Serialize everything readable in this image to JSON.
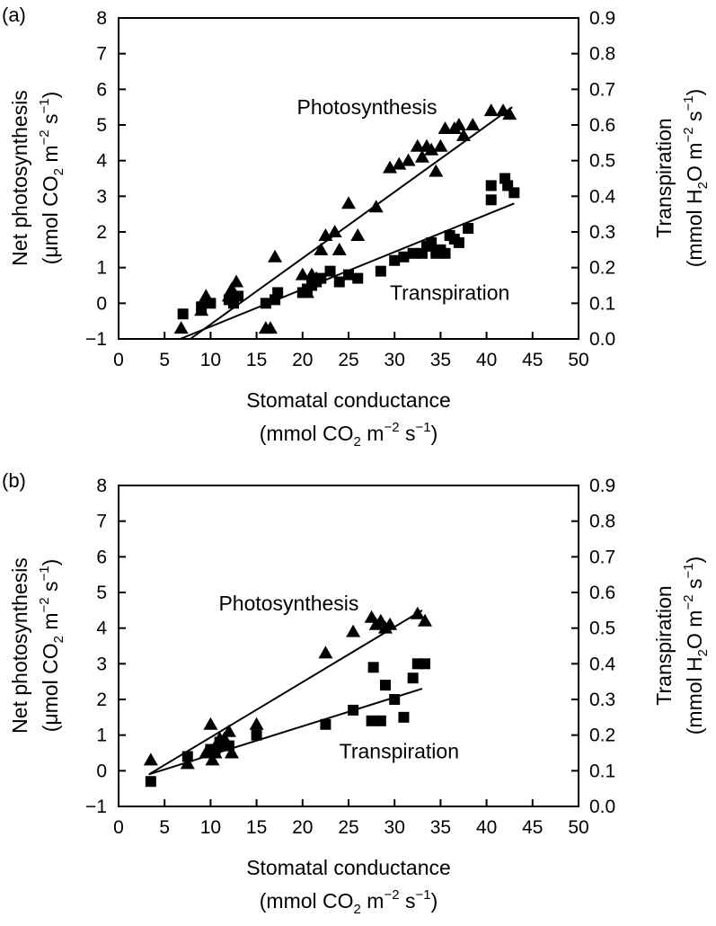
{
  "chart_data": [
    {
      "panel_label": "(a)",
      "type": "scatter",
      "x_title": {
        "line1": "Stomatal conductance",
        "line2_pre": "(mmol CO",
        "line2_sub": "2",
        "line2_mid": " m",
        "line2_sup1": "−2",
        "line2_mid2": " s",
        "line2_sup2": "−1",
        "line2_post": ")"
      },
      "y_left_title": {
        "line1": "Net photosynthesis",
        "line2_pre": "(μmol CO",
        "line2_sub": "2",
        "line2_mid": " m",
        "line2_sup1": "−2",
        "line2_mid2": " s",
        "line2_sup2": "−1",
        "line2_post": ")"
      },
      "y_right_title": {
        "line1": "Transpiration",
        "line2_pre": "(mmol H",
        "line2_sub": "2",
        "line2_mid": "O m",
        "line2_sup1": "−2",
        "line2_mid2": " s",
        "line2_sup2": "−1",
        "line2_post": ")"
      },
      "xlim": [
        0,
        50
      ],
      "ylim_left": [
        -1,
        8
      ],
      "ylim_right": [
        0.0,
        0.9
      ],
      "x_ticks": [
        "0",
        "5",
        "10",
        "15",
        "20",
        "25",
        "30",
        "35",
        "40",
        "45",
        "50"
      ],
      "y_left_ticks": [
        "−1",
        "0",
        "1",
        "2",
        "3",
        "4",
        "5",
        "6",
        "7",
        "8"
      ],
      "y_right_ticks": [
        "0.0",
        "0.1",
        "0.2",
        "0.3",
        "0.4",
        "0.5",
        "0.6",
        "0.7",
        "0.8",
        "0.9"
      ],
      "annotations": [
        {
          "text": "Photosynthesis",
          "x": 27,
          "y": 5.3
        },
        {
          "text": "Transpiration",
          "x": 36,
          "y": 0.1
        }
      ],
      "series": [
        {
          "name": "Photosynthesis",
          "marker": "triangle",
          "axis": "left",
          "points": [
            [
              6.8,
              -0.7
            ],
            [
              9,
              -0.2
            ],
            [
              9.5,
              0.2
            ],
            [
              12,
              0.2
            ],
            [
              12.3,
              0.4
            ],
            [
              12.8,
              0.6
            ],
            [
              16,
              -0.7
            ],
            [
              16.5,
              -0.7
            ],
            [
              17,
              1.3
            ],
            [
              20,
              0.8
            ],
            [
              20.5,
              0.3
            ],
            [
              21,
              0.8
            ],
            [
              21.5,
              0.7
            ],
            [
              22,
              1.5
            ],
            [
              22.5,
              1.9
            ],
            [
              23.5,
              2.0
            ],
            [
              24,
              1.5
            ],
            [
              25,
              2.8
            ],
            [
              26,
              1.9
            ],
            [
              28,
              2.7
            ],
            [
              29.5,
              3.8
            ],
            [
              30.5,
              3.9
            ],
            [
              31.5,
              4.0
            ],
            [
              32.5,
              4.4
            ],
            [
              33,
              4.1
            ],
            [
              33.5,
              4.4
            ],
            [
              34,
              4.3
            ],
            [
              34.5,
              3.7
            ],
            [
              35,
              4.4
            ],
            [
              35.5,
              4.9
            ],
            [
              36.5,
              4.9
            ],
            [
              37,
              5.0
            ],
            [
              37.5,
              4.7
            ],
            [
              38.5,
              5.0
            ],
            [
              40.5,
              5.4
            ],
            [
              41.8,
              5.4
            ],
            [
              42.5,
              5.3
            ]
          ]
        },
        {
          "name": "Transpiration",
          "marker": "square",
          "axis": "right",
          "points": [
            [
              7,
              0.07
            ],
            [
              9,
              0.09
            ],
            [
              10,
              0.1
            ],
            [
              12,
              0.11
            ],
            [
              12.5,
              0.1
            ],
            [
              13,
              0.12
            ],
            [
              16,
              0.1
            ],
            [
              17,
              0.11
            ],
            [
              17.3,
              0.13
            ],
            [
              20,
              0.13
            ],
            [
              20.5,
              0.14
            ],
            [
              21,
              0.15
            ],
            [
              21.5,
              0.16
            ],
            [
              22,
              0.17
            ],
            [
              23,
              0.19
            ],
            [
              24,
              0.16
            ],
            [
              25,
              0.18
            ],
            [
              26,
              0.17
            ],
            [
              28.5,
              0.19
            ],
            [
              30,
              0.22
            ],
            [
              31,
              0.23
            ],
            [
              32,
              0.24
            ],
            [
              33,
              0.24
            ],
            [
              33.5,
              0.26
            ],
            [
              34,
              0.27
            ],
            [
              34.5,
              0.24
            ],
            [
              35,
              0.25
            ],
            [
              35.5,
              0.24
            ],
            [
              36,
              0.29
            ],
            [
              36.5,
              0.28
            ],
            [
              37,
              0.27
            ],
            [
              38,
              0.31
            ],
            [
              40.5,
              0.39
            ],
            [
              42,
              0.45
            ],
            [
              42.3,
              0.43
            ],
            [
              40.5,
              0.43
            ],
            [
              43,
              0.41
            ]
          ]
        }
      ],
      "fit_lines": [
        {
          "name": "Photosynthesis",
          "axis": "left",
          "x": [
            7.8,
            42.8
          ],
          "y": [
            -1.0,
            5.5
          ]
        },
        {
          "name": "Transpiration",
          "axis": "right",
          "x": [
            6.7,
            43
          ],
          "y": [
            0.0,
            0.38
          ]
        }
      ]
    },
    {
      "panel_label": "(b)",
      "type": "scatter",
      "x_title": {
        "line1": "Stomatal conductance",
        "line2_pre": "(mmol CO",
        "line2_sub": "2",
        "line2_mid": " m",
        "line2_sup1": "−2",
        "line2_mid2": " s",
        "line2_sup2": "−1",
        "line2_post": ")"
      },
      "y_left_title": {
        "line1": "Net photosynthesis",
        "line2_pre": "(μmol CO",
        "line2_sub": "2",
        "line2_mid": " m",
        "line2_sup1": "−2",
        "line2_mid2": " s",
        "line2_sup2": "−1",
        "line2_post": ")"
      },
      "y_right_title": {
        "line1": "Transpiration",
        "line2_pre": "(mmol H",
        "line2_sub": "2",
        "line2_mid": "O m",
        "line2_sup1": "−2",
        "line2_mid2": " s",
        "line2_sup2": "−1",
        "line2_post": ")"
      },
      "xlim": [
        0,
        50
      ],
      "ylim_left": [
        -1,
        8
      ],
      "ylim_right": [
        0.0,
        0.9
      ],
      "x_ticks": [
        "0",
        "5",
        "10",
        "15",
        "20",
        "25",
        "30",
        "35",
        "40",
        "45",
        "50"
      ],
      "y_left_ticks": [
        "−1",
        "0",
        "1",
        "2",
        "3",
        "4",
        "5",
        "6",
        "7",
        "8"
      ],
      "y_right_ticks": [
        "0.0",
        "0.1",
        "0.2",
        "0.3",
        "0.4",
        "0.5",
        "0.6",
        "0.7",
        "0.8",
        "0.9"
      ],
      "annotations": [
        {
          "text": "Photosynthesis",
          "x": 18.5,
          "y": 4.5
        },
        {
          "text": "Transpiration",
          "x": 30.5,
          "y": 0.35
        }
      ],
      "series": [
        {
          "name": "Photosynthesis",
          "marker": "triangle",
          "axis": "left",
          "points": [
            [
              3.5,
              0.3
            ],
            [
              7.5,
              0.2
            ],
            [
              9.5,
              0.5
            ],
            [
              10,
              1.3
            ],
            [
              10.2,
              0.3
            ],
            [
              10.5,
              0.5
            ],
            [
              11,
              0.9
            ],
            [
              11.5,
              0.9
            ],
            [
              12,
              1.1
            ],
            [
              12.3,
              0.5
            ],
            [
              15,
              1.3
            ],
            [
              22.5,
              3.3
            ],
            [
              25.5,
              3.9
            ],
            [
              27.5,
              4.3
            ],
            [
              28,
              4.1
            ],
            [
              28.5,
              4.2
            ],
            [
              29,
              4.0
            ],
            [
              29.5,
              4.1
            ],
            [
              32.5,
              4.4
            ],
            [
              33.3,
              4.2
            ]
          ]
        },
        {
          "name": "Transpiration",
          "marker": "square",
          "axis": "right",
          "points": [
            [
              3.5,
              0.07
            ],
            [
              7.5,
              0.14
            ],
            [
              10,
              0.16
            ],
            [
              10.5,
              0.16
            ],
            [
              11,
              0.18
            ],
            [
              11.5,
              0.17
            ],
            [
              12,
              0.17
            ],
            [
              15,
              0.2
            ],
            [
              22.5,
              0.23
            ],
            [
              25.5,
              0.27
            ],
            [
              27.5,
              0.24
            ],
            [
              27.7,
              0.39
            ],
            [
              28.5,
              0.24
            ],
            [
              29,
              0.34
            ],
            [
              30,
              0.3
            ],
            [
              31,
              0.25
            ],
            [
              32,
              0.36
            ],
            [
              32.5,
              0.4
            ],
            [
              33.3,
              0.4
            ]
          ]
        }
      ],
      "fit_lines": [
        {
          "name": "Photosynthesis",
          "axis": "left",
          "x": [
            3.3,
            33
          ],
          "y": [
            -0.1,
            4.5
          ]
        },
        {
          "name": "Transpiration",
          "axis": "right",
          "x": [
            3.3,
            33
          ],
          "y": [
            0.09,
            0.33
          ]
        }
      ]
    }
  ]
}
